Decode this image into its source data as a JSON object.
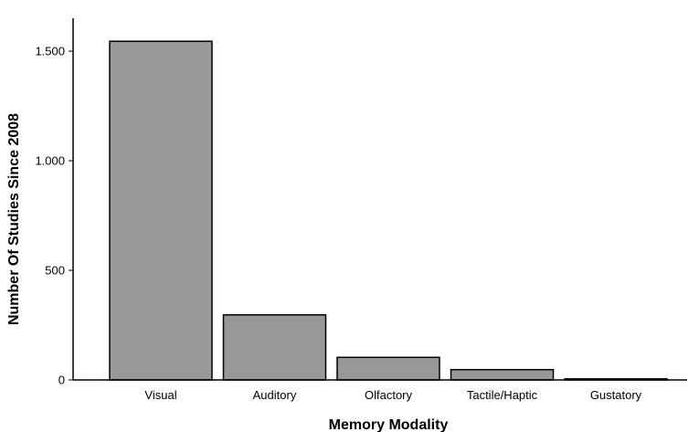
{
  "chart_data": {
    "type": "bar",
    "categories": [
      "Visual",
      "Auditory",
      "Olfactory",
      "Tactile/Haptic",
      "Gustatory"
    ],
    "values": [
      1545,
      297,
      103,
      47,
      5
    ],
    "xlabel": "Memory Modality",
    "ylabel": "Number Of Studies Since 2008",
    "ylim": [
      0,
      1650
    ],
    "yticks": [
      {
        "value": 0,
        "label": "0"
      },
      {
        "value": 500,
        "label": "500"
      },
      {
        "value": 1000,
        "label": "1.000"
      },
      {
        "value": 1500,
        "label": "1.500"
      }
    ],
    "grid": false,
    "legend": "none",
    "bar_color": "#999797",
    "edge_color": "#000000"
  }
}
